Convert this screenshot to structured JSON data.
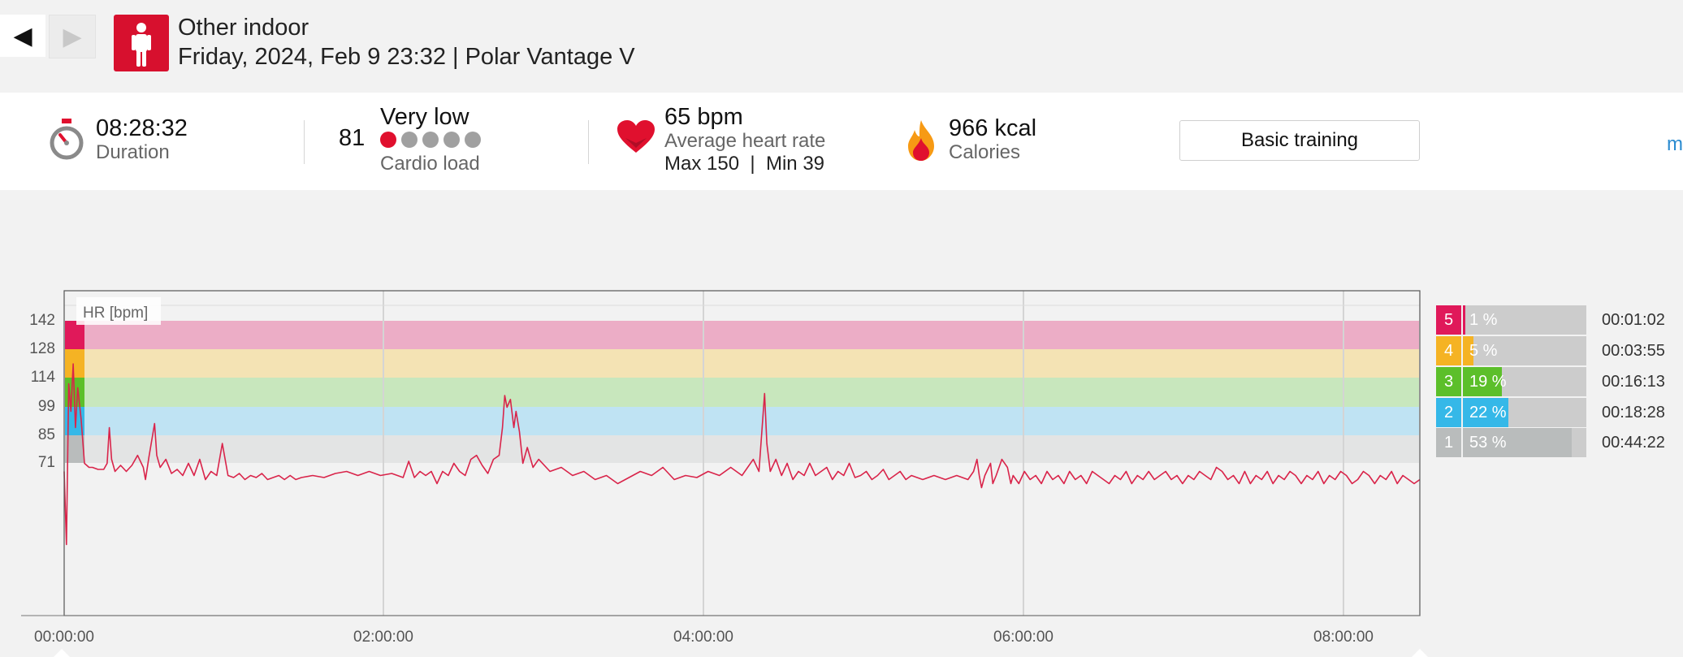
{
  "nav": {
    "back_icon": "◀",
    "forward_icon": "▶"
  },
  "header": {
    "sport_icon": "person-standing-icon",
    "sport": "Other indoor",
    "subtitle": "Friday, 2024, Feb 9 23:32 | Polar Vantage V"
  },
  "stats": {
    "duration_value": "08:28:32",
    "duration_label": "Duration",
    "cardio_value": "81",
    "cardio_level": "Very low",
    "cardio_dots_filled": 1,
    "cardio_dots_total": 5,
    "cardio_label": "Cardio load",
    "hr_value": "65 bpm",
    "hr_label": "Average heart rate",
    "hr_max": "Max 150",
    "hr_sep": "|",
    "hr_min": "Min 39",
    "calories_value": "966 kcal",
    "calories_label": "Calories",
    "training_button": "Basic training",
    "more_link": "m"
  },
  "colors": {
    "accent": "#d7102e",
    "zone5": "#e0195a",
    "zone4": "#f5b324",
    "zone3": "#5cbf2a",
    "zone2": "#35b8e8",
    "zone1": "#b9bcbc"
  },
  "chart_data": {
    "type": "line",
    "series_label": "HR [bpm]",
    "x_unit": "hh:mm:ss",
    "x_range": [
      "00:00:00",
      "08:28:32"
    ],
    "x_ticks": [
      "00:00:00",
      "02:00:00",
      "04:00:00",
      "06:00:00",
      "08:00:00"
    ],
    "y_ticks": [
      142,
      128,
      114,
      99,
      85,
      71
    ],
    "ylim": [
      20,
      160
    ],
    "zone_bands": [
      {
        "zone": 5,
        "from": 128,
        "to": 142
      },
      {
        "zone": 4,
        "from": 114,
        "to": 128
      },
      {
        "zone": 3,
        "from": 99,
        "to": 114
      },
      {
        "zone": 2,
        "from": 85,
        "to": 99
      },
      {
        "zone": 1,
        "from": 71,
        "to": 85
      }
    ],
    "hr_points": [
      [
        0,
        66
      ],
      [
        0.02,
        30
      ],
      [
        0.04,
        110
      ],
      [
        0.06,
        96
      ],
      [
        0.08,
        120
      ],
      [
        0.1,
        88
      ],
      [
        0.12,
        108
      ],
      [
        0.15,
        92
      ],
      [
        0.18,
        70
      ],
      [
        0.22,
        68
      ],
      [
        0.25,
        68
      ],
      [
        0.3,
        67
      ],
      [
        0.35,
        67
      ],
      [
        0.38,
        70
      ],
      [
        0.4,
        88
      ],
      [
        0.42,
        72
      ],
      [
        0.45,
        66
      ],
      [
        0.5,
        69
      ],
      [
        0.55,
        66
      ],
      [
        0.6,
        69
      ],
      [
        0.65,
        74
      ],
      [
        0.7,
        68
      ],
      [
        0.72,
        62
      ],
      [
        0.75,
        73
      ],
      [
        0.8,
        90
      ],
      [
        0.82,
        74
      ],
      [
        0.85,
        68
      ],
      [
        0.9,
        72
      ],
      [
        0.95,
        65
      ],
      [
        1.0,
        67
      ],
      [
        1.05,
        64
      ],
      [
        1.1,
        70
      ],
      [
        1.15,
        64
      ],
      [
        1.2,
        72
      ],
      [
        1.25,
        62
      ],
      [
        1.3,
        66
      ],
      [
        1.35,
        64
      ],
      [
        1.4,
        80
      ],
      [
        1.45,
        64
      ],
      [
        1.5,
        63
      ],
      [
        1.55,
        65
      ],
      [
        1.6,
        62
      ],
      [
        1.65,
        64
      ],
      [
        1.7,
        63
      ],
      [
        1.75,
        65
      ],
      [
        1.8,
        62
      ],
      [
        1.85,
        63
      ],
      [
        1.9,
        64
      ],
      [
        1.95,
        62
      ],
      [
        2.0,
        64
      ],
      [
        2.05,
        62
      ],
      [
        2.1,
        63
      ],
      [
        2.2,
        64
      ],
      [
        2.3,
        63
      ],
      [
        2.4,
        65
      ],
      [
        2.5,
        66
      ],
      [
        2.6,
        64
      ],
      [
        2.7,
        66
      ],
      [
        2.8,
        64
      ],
      [
        2.9,
        65
      ],
      [
        3.0,
        63
      ],
      [
        3.05,
        71
      ],
      [
        3.1,
        63
      ],
      [
        3.15,
        66
      ],
      [
        3.2,
        64
      ],
      [
        3.25,
        66
      ],
      [
        3.3,
        60
      ],
      [
        3.35,
        66
      ],
      [
        3.4,
        64
      ],
      [
        3.45,
        70
      ],
      [
        3.5,
        66
      ],
      [
        3.55,
        64
      ],
      [
        3.6,
        72
      ],
      [
        3.65,
        74
      ],
      [
        3.7,
        69
      ],
      [
        3.75,
        65
      ],
      [
        3.8,
        72
      ],
      [
        3.85,
        74
      ],
      [
        3.88,
        88
      ],
      [
        3.9,
        104
      ],
      [
        3.92,
        98
      ],
      [
        3.95,
        102
      ],
      [
        3.98,
        88
      ],
      [
        4.0,
        96
      ],
      [
        4.03,
        86
      ],
      [
        4.06,
        70
      ],
      [
        4.1,
        78
      ],
      [
        4.15,
        68
      ],
      [
        4.2,
        72
      ],
      [
        4.3,
        66
      ],
      [
        4.4,
        68
      ],
      [
        4.5,
        64
      ],
      [
        4.6,
        66
      ],
      [
        4.7,
        62
      ],
      [
        4.8,
        64
      ],
      [
        4.9,
        60
      ],
      [
        5.0,
        63
      ],
      [
        5.1,
        66
      ],
      [
        5.2,
        64
      ],
      [
        5.3,
        68
      ],
      [
        5.4,
        62
      ],
      [
        5.5,
        64
      ],
      [
        5.6,
        63
      ],
      [
        5.7,
        66
      ],
      [
        5.8,
        64
      ],
      [
        5.9,
        68
      ],
      [
        6.0,
        64
      ],
      [
        6.1,
        72
      ],
      [
        6.15,
        66
      ],
      [
        6.2,
        105
      ],
      [
        6.22,
        80
      ],
      [
        6.25,
        66
      ],
      [
        6.3,
        72
      ],
      [
        6.35,
        64
      ],
      [
        6.4,
        70
      ],
      [
        6.45,
        62
      ],
      [
        6.5,
        66
      ],
      [
        6.55,
        64
      ],
      [
        6.6,
        70
      ],
      [
        6.65,
        64
      ],
      [
        6.7,
        66
      ],
      [
        6.75,
        68
      ],
      [
        6.8,
        62
      ],
      [
        6.85,
        66
      ],
      [
        6.9,
        64
      ],
      [
        6.95,
        70
      ],
      [
        7.0,
        63
      ],
      [
        7.05,
        64
      ],
      [
        7.1,
        66
      ],
      [
        7.15,
        62
      ],
      [
        7.2,
        64
      ],
      [
        7.25,
        67
      ],
      [
        7.3,
        62
      ],
      [
        7.35,
        64
      ],
      [
        7.4,
        66
      ],
      [
        7.45,
        62
      ],
      [
        7.5,
        64
      ],
      [
        7.6,
        62
      ],
      [
        7.7,
        64
      ],
      [
        7.8,
        62
      ],
      [
        7.9,
        64
      ],
      [
        8.0,
        62
      ],
      [
        8.05,
        66
      ],
      [
        8.08,
        72
      ],
      [
        8.1,
        64
      ],
      [
        8.12,
        58
      ],
      [
        8.15,
        64
      ],
      [
        8.2,
        70
      ],
      [
        8.22,
        60
      ],
      [
        8.25,
        64
      ],
      [
        8.3,
        72
      ],
      [
        8.35,
        68
      ],
      [
        8.38,
        60
      ],
      [
        8.4,
        64
      ],
      [
        8.45,
        60
      ],
      [
        8.5,
        66
      ],
      [
        8.55,
        62
      ],
      [
        8.6,
        64
      ],
      [
        8.65,
        60
      ],
      [
        8.7,
        66
      ],
      [
        8.75,
        62
      ],
      [
        8.8,
        64
      ],
      [
        8.85,
        60
      ],
      [
        8.9,
        66
      ],
      [
        8.95,
        62
      ],
      [
        9.0,
        64
      ],
      [
        9.05,
        60
      ],
      [
        9.1,
        66
      ],
      [
        9.15,
        64
      ],
      [
        9.2,
        62
      ],
      [
        9.25,
        60
      ],
      [
        9.3,
        64
      ],
      [
        9.35,
        62
      ],
      [
        9.4,
        66
      ],
      [
        9.45,
        60
      ],
      [
        9.5,
        64
      ],
      [
        9.55,
        62
      ],
      [
        9.6,
        66
      ],
      [
        9.65,
        62
      ],
      [
        9.7,
        64
      ],
      [
        9.75,
        66
      ],
      [
        9.8,
        62
      ],
      [
        9.85,
        64
      ],
      [
        9.9,
        60
      ],
      [
        9.95,
        64
      ],
      [
        10.0,
        62
      ],
      [
        10.05,
        66
      ],
      [
        10.1,
        64
      ],
      [
        10.15,
        62
      ],
      [
        10.2,
        68
      ],
      [
        10.25,
        66
      ],
      [
        10.3,
        62
      ],
      [
        10.35,
        64
      ],
      [
        10.4,
        60
      ],
      [
        10.45,
        66
      ],
      [
        10.5,
        60
      ],
      [
        10.55,
        64
      ],
      [
        10.6,
        62
      ],
      [
        10.65,
        66
      ],
      [
        10.7,
        60
      ],
      [
        10.75,
        64
      ],
      [
        10.8,
        62
      ],
      [
        10.85,
        66
      ],
      [
        10.9,
        64
      ],
      [
        10.95,
        60
      ],
      [
        11.0,
        64
      ],
      [
        11.05,
        62
      ],
      [
        11.1,
        66
      ],
      [
        11.15,
        60
      ],
      [
        11.2,
        64
      ],
      [
        11.25,
        62
      ],
      [
        11.3,
        66
      ],
      [
        11.35,
        64
      ],
      [
        11.4,
        60
      ],
      [
        11.45,
        62
      ],
      [
        11.5,
        66
      ],
      [
        11.55,
        64
      ],
      [
        11.6,
        60
      ],
      [
        11.65,
        64
      ],
      [
        11.7,
        62
      ],
      [
        11.75,
        66
      ],
      [
        11.8,
        60
      ],
      [
        11.85,
        64
      ],
      [
        11.9,
        62
      ],
      [
        11.95,
        60
      ],
      [
        12.0,
        62
      ]
    ],
    "zones": [
      {
        "zone": "5",
        "pct": 1,
        "pct_label": "1 %",
        "time": "00:01:02"
      },
      {
        "zone": "4",
        "pct": 5,
        "pct_label": "5 %",
        "time": "00:03:55"
      },
      {
        "zone": "3",
        "pct": 19,
        "pct_label": "19 %",
        "time": "00:16:13"
      },
      {
        "zone": "2",
        "pct": 22,
        "pct_label": "22 %",
        "time": "00:18:28"
      },
      {
        "zone": "1",
        "pct": 53,
        "pct_label": "53 %",
        "time": "00:44:22"
      }
    ]
  }
}
